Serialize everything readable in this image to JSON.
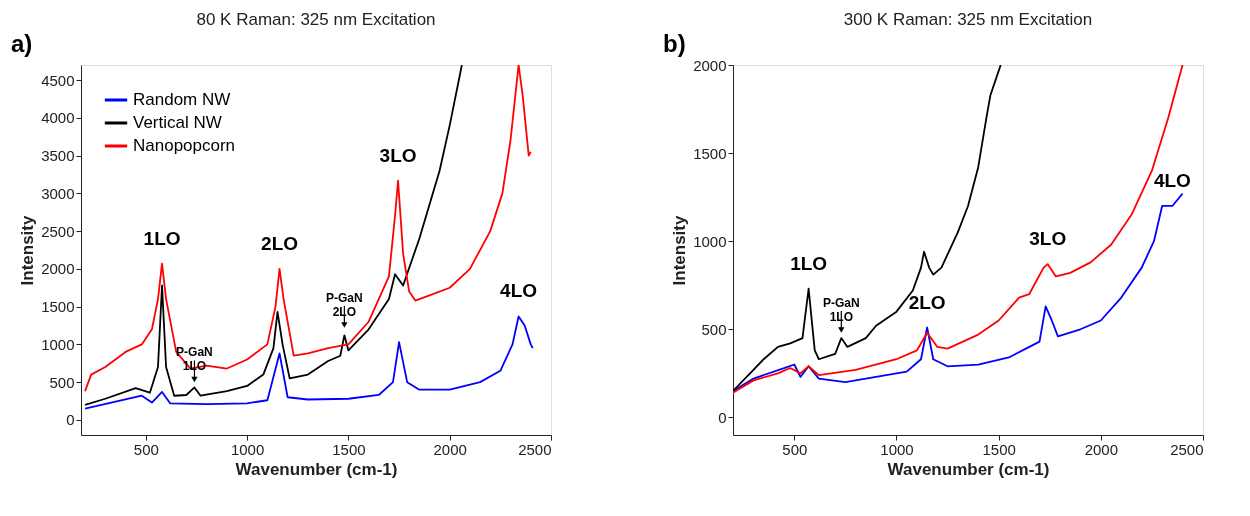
{
  "chart_data": [
    {
      "type": "line",
      "title": "80 K Raman: 325 nm Excitation",
      "xlabel": "Wavenumber (cm-1)",
      "ylabel": "Intensity",
      "xlim": [
        180,
        2500
      ],
      "xticks": [
        500,
        1000,
        1500,
        2000,
        2500
      ],
      "ylim": [
        -200,
        4700
      ],
      "yticks": [
        0,
        500,
        1000,
        1500,
        2000,
        2500,
        3000,
        3500,
        4000,
        4500
      ],
      "grid": false,
      "legend": "top left",
      "line_style": "solid",
      "marker": "none",
      "annotations": [
        "a)",
        {
          "text": "1LO",
          "x": 580,
          "y": 2070
        },
        {
          "text": "2LO",
          "x": 1160,
          "y": 2000
        },
        {
          "text": "3LO",
          "x": 1745,
          "y": 3170
        },
        {
          "text": "4LO",
          "x": 2340,
          "y": 1370
        },
        {
          "text": "P-GaN 1LO",
          "x": 740,
          "y": 430
        },
        {
          "text": "P-GaN 2LO",
          "x": 1480,
          "y": 1150
        }
      ],
      "series": [
        {
          "name": "Random NW",
          "color": "#0000ff",
          "x": [
            200,
            480,
            530,
            580,
            620,
            800,
            1000,
            1100,
            1160,
            1200,
            1300,
            1500,
            1650,
            1720,
            1750,
            1790,
            1850,
            2000,
            2150,
            2250,
            2310,
            2340,
            2370,
            2400,
            2410
          ],
          "values": [
            150,
            320,
            230,
            370,
            220,
            210,
            220,
            260,
            880,
            300,
            270,
            280,
            330,
            500,
            1030,
            500,
            400,
            400,
            500,
            650,
            1000,
            1370,
            1250,
            1000,
            950
          ]
        },
        {
          "name": "Vertical NW",
          "color": "#000000",
          "x": [
            200,
            300,
            450,
            520,
            560,
            580,
            600,
            640,
            700,
            740,
            770,
            900,
            1000,
            1080,
            1130,
            1150,
            1175,
            1210,
            1300,
            1400,
            1460,
            1480,
            1500,
            1600,
            1700,
            1730,
            1770,
            1850,
            1950,
            2000,
            2060
          ],
          "values": [
            200,
            280,
            420,
            360,
            700,
            1780,
            700,
            320,
            330,
            430,
            320,
            380,
            450,
            600,
            950,
            1430,
            1000,
            550,
            600,
            780,
            850,
            1120,
            920,
            1200,
            1600,
            1930,
            1780,
            2400,
            3300,
            3900,
            4700
          ]
        },
        {
          "name": "Nanopopcorn",
          "color": "#ff0000",
          "x": [
            200,
            230,
            300,
            400,
            480,
            530,
            560,
            580,
            600,
            650,
            720,
            800,
            900,
            1000,
            1100,
            1140,
            1160,
            1180,
            1230,
            1300,
            1400,
            1500,
            1600,
            1700,
            1730,
            1745,
            1770,
            1800,
            1830,
            1900,
            2000,
            2100,
            2200,
            2260,
            2300,
            2340,
            2360,
            2390,
            2400
          ],
          "values": [
            380,
            600,
            700,
            900,
            1000,
            1200,
            1600,
            2070,
            1600,
            900,
            680,
            720,
            680,
            800,
            1000,
            1500,
            2000,
            1600,
            850,
            880,
            950,
            1000,
            1300,
            1900,
            2700,
            3170,
            2200,
            1700,
            1580,
            1650,
            1750,
            2000,
            2500,
            3000,
            3700,
            4700,
            4300,
            3500,
            3550
          ]
        }
      ]
    },
    {
      "type": "line",
      "title": "300 K Raman: 325 nm Excitation",
      "xlabel": "Wavenumber (cm-1)",
      "ylabel": "Intensity",
      "xlim": [
        200,
        2500
      ],
      "xticks": [
        500,
        1000,
        1500,
        2000,
        2500
      ],
      "ylim": [
        -100,
        2000
      ],
      "yticks": [
        0,
        500,
        1000,
        1500,
        2000
      ],
      "grid": false,
      "legend": "top left",
      "line_style": "solid",
      "marker": "none",
      "annotations": [
        "b)",
        {
          "text": "1LO",
          "x": 570,
          "y": 730
        },
        {
          "text": "2LO",
          "x": 1150,
          "y": 510
        },
        {
          "text": "3LO",
          "x": 1740,
          "y": 870
        },
        {
          "text": "4LO",
          "x": 2350,
          "y": 1200
        },
        {
          "text": "P-GaN 1LO",
          "x": 730,
          "y": 450
        }
      ],
      "series": [
        {
          "name": "Random NW",
          "color": "#0000ff",
          "x": [
            200,
            300,
            450,
            500,
            530,
            570,
            620,
            750,
            900,
            1050,
            1120,
            1150,
            1180,
            1250,
            1400,
            1550,
            1650,
            1700,
            1730,
            1760,
            1790,
            1900,
            2000,
            2100,
            2200,
            2260,
            2300,
            2350,
            2400
          ],
          "values": [
            150,
            220,
            280,
            300,
            230,
            290,
            220,
            200,
            230,
            260,
            330,
            510,
            330,
            290,
            300,
            340,
            400,
            430,
            630,
            550,
            460,
            500,
            550,
            680,
            850,
            1000,
            1200,
            1200,
            1270
          ]
        },
        {
          "name": "Vertical NW",
          "color": "#000000",
          "x": [
            200,
            300,
            350,
            420,
            480,
            540,
            570,
            600,
            620,
            700,
            730,
            760,
            850,
            900,
            1000,
            1080,
            1120,
            1135,
            1160,
            1180,
            1220,
            1300,
            1350,
            1400,
            1440,
            1460,
            1510
          ],
          "values": [
            150,
            270,
            330,
            400,
            420,
            450,
            730,
            380,
            330,
            360,
            450,
            400,
            450,
            520,
            600,
            720,
            850,
            940,
            850,
            810,
            850,
            1050,
            1200,
            1420,
            1700,
            1830,
            2000
          ]
        },
        {
          "name": "Nanopopcorn",
          "color": "#ff0000",
          "x": [
            200,
            300,
            420,
            480,
            530,
            570,
            620,
            800,
            1000,
            1100,
            1150,
            1200,
            1250,
            1400,
            1500,
            1600,
            1650,
            1720,
            1740,
            1780,
            1850,
            1950,
            2050,
            2150,
            2250,
            2330,
            2400
          ],
          "values": [
            140,
            210,
            250,
            280,
            250,
            290,
            240,
            270,
            330,
            380,
            480,
            400,
            390,
            470,
            550,
            680,
            700,
            850,
            870,
            800,
            820,
            880,
            980,
            1150,
            1400,
            1700,
            2000
          ]
        }
      ]
    }
  ]
}
